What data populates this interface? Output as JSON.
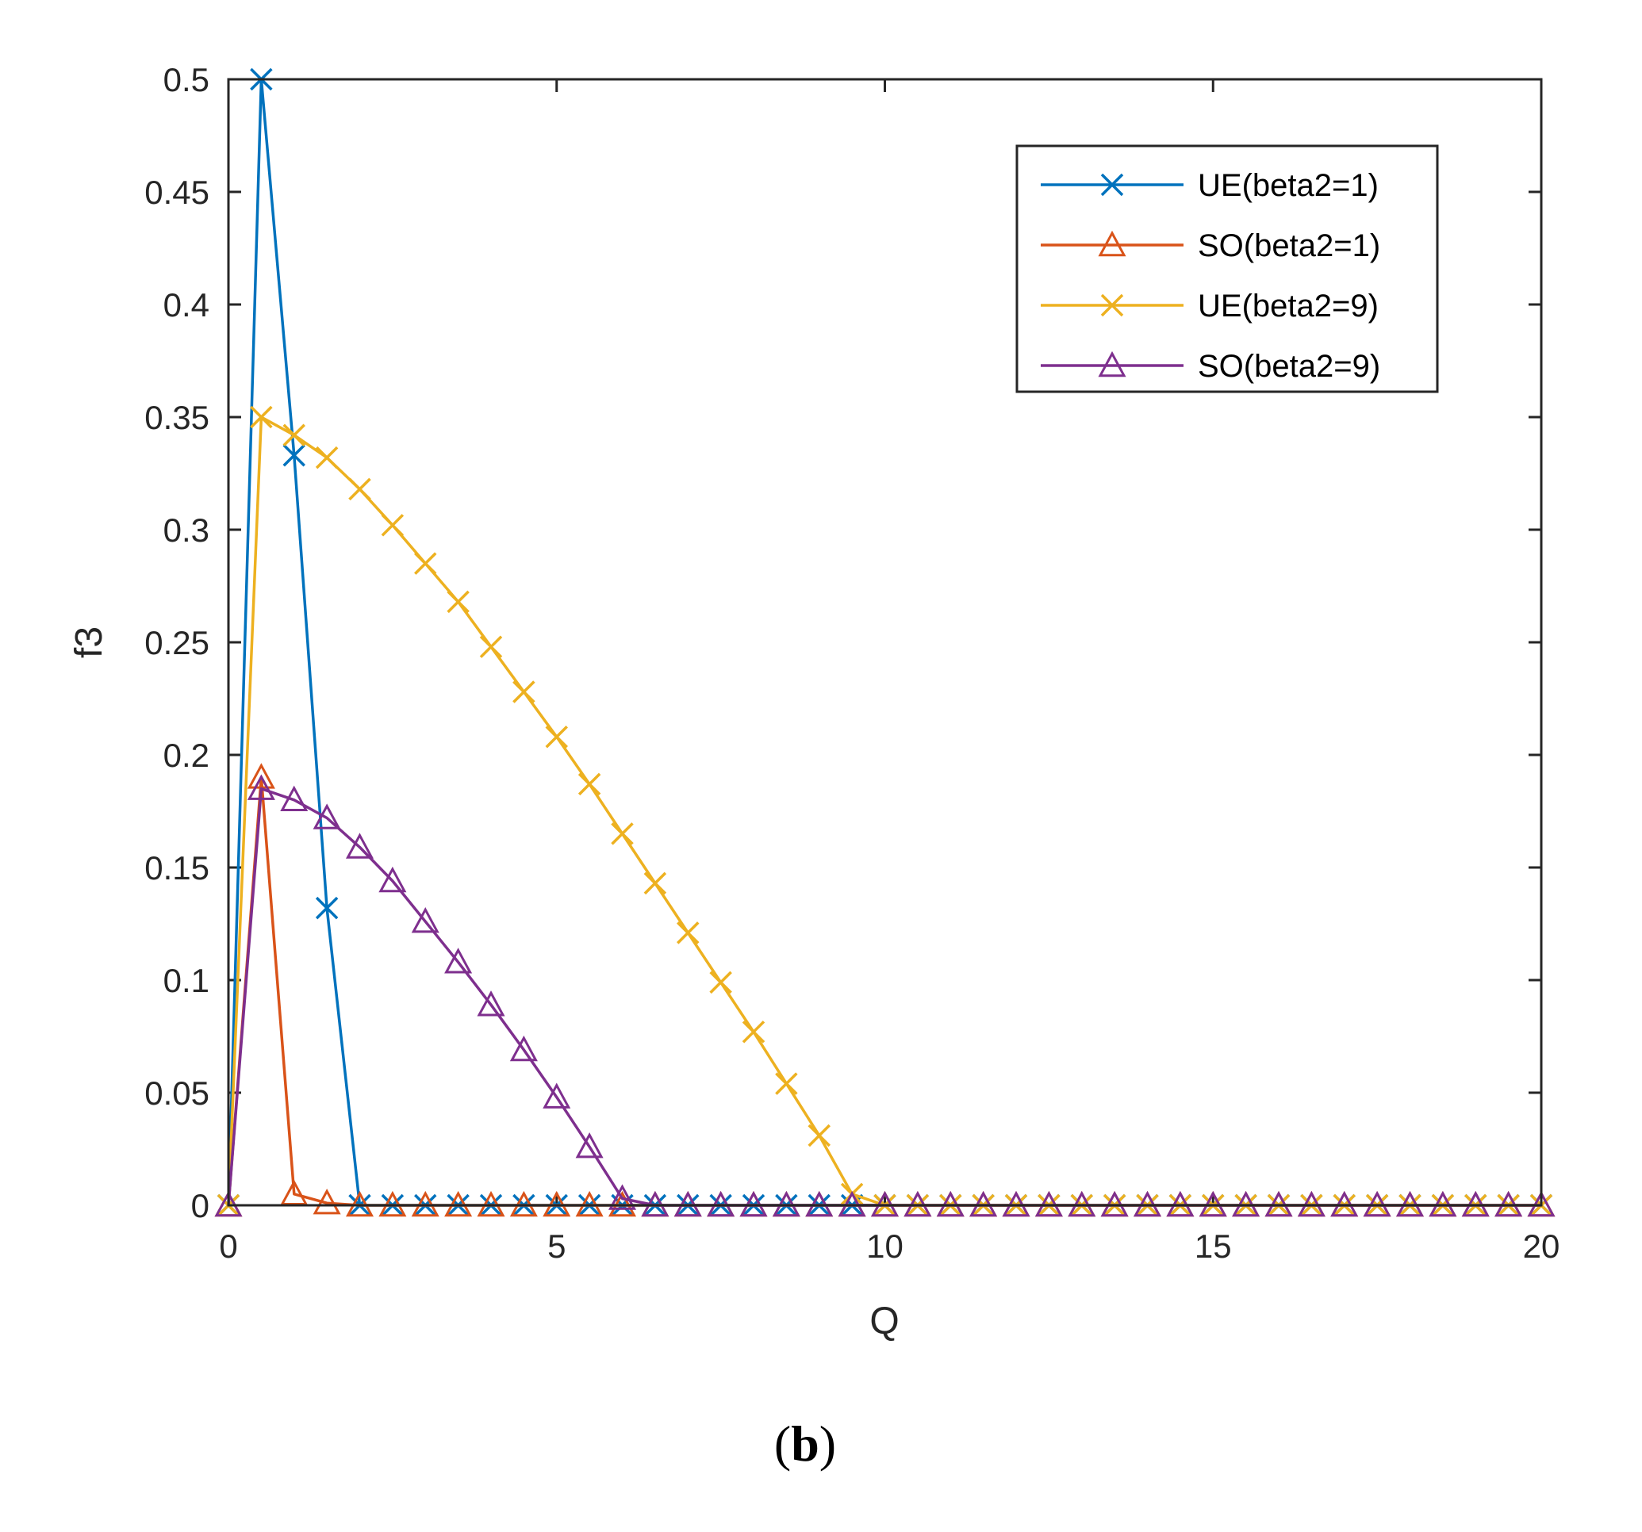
{
  "caption": {
    "open": "(",
    "letter": "b",
    "close": ")"
  },
  "chart_data": {
    "type": "line",
    "title": "",
    "xlabel": "Q",
    "ylabel": "f3",
    "xlim": [
      0,
      20
    ],
    "ylim": [
      0,
      0.5
    ],
    "xticks": [
      0,
      5,
      10,
      15,
      20
    ],
    "xtick_labels": [
      "0",
      "5",
      "10",
      "15",
      "20"
    ],
    "yticks": [
      0,
      0.05,
      0.1,
      0.15,
      0.2,
      0.25,
      0.3,
      0.35,
      0.4,
      0.45,
      0.5
    ],
    "ytick_labels": [
      "0",
      "0.05",
      "0.1",
      "0.15",
      "0.2",
      "0.25",
      "0.3",
      "0.35",
      "0.4",
      "0.45",
      "0.5"
    ],
    "grid": false,
    "legend_position": "top-right",
    "x": [
      0,
      0.5,
      1,
      1.5,
      2,
      2.5,
      3,
      3.5,
      4,
      4.5,
      5,
      5.5,
      6,
      6.5,
      7,
      7.5,
      8,
      8.5,
      9,
      9.5,
      10,
      10.5,
      11,
      11.5,
      12,
      12.5,
      13,
      13.5,
      14,
      14.5,
      15,
      15.5,
      16,
      16.5,
      17,
      17.5,
      18,
      18.5,
      19,
      19.5,
      20
    ],
    "series": [
      {
        "name": "UE(beta2=1)",
        "color": "#0072BD",
        "marker": "x",
        "values": [
          0,
          0.5,
          0.333,
          0.132,
          0,
          0,
          0,
          0,
          0,
          0,
          0,
          0,
          0,
          0,
          0,
          0,
          0,
          0,
          0,
          0,
          0,
          0,
          0,
          0,
          0,
          0,
          0,
          0,
          0,
          0,
          0,
          0,
          0,
          0,
          0,
          0,
          0,
          0,
          0,
          0,
          0
        ]
      },
      {
        "name": "SO(beta2=1)",
        "color": "#D95319",
        "marker": "triangle",
        "values": [
          0,
          0.19,
          0.005,
          0.001,
          0,
          0,
          0,
          0,
          0,
          0,
          0,
          0,
          0,
          0,
          0,
          0,
          0,
          0,
          0,
          0,
          0,
          0,
          0,
          0,
          0,
          0,
          0,
          0,
          0,
          0,
          0,
          0,
          0,
          0,
          0,
          0,
          0,
          0,
          0,
          0,
          0
        ]
      },
      {
        "name": "UE(beta2=9)",
        "color": "#EDB120",
        "marker": "x",
        "values": [
          0,
          0.35,
          0.342,
          0.332,
          0.318,
          0.302,
          0.285,
          0.268,
          0.248,
          0.228,
          0.208,
          0.187,
          0.165,
          0.143,
          0.121,
          0.099,
          0.077,
          0.054,
          0.031,
          0.005,
          0,
          0,
          0,
          0,
          0,
          0,
          0,
          0,
          0,
          0,
          0,
          0,
          0,
          0,
          0,
          0,
          0,
          0,
          0,
          0,
          0
        ]
      },
      {
        "name": "SO(beta2=9)",
        "color": "#7E2F8E",
        "marker": "triangle",
        "values": [
          0,
          0.185,
          0.18,
          0.172,
          0.159,
          0.144,
          0.126,
          0.108,
          0.089,
          0.069,
          0.048,
          0.026,
          0.003,
          0,
          0,
          0,
          0,
          0,
          0,
          0,
          0,
          0,
          0,
          0,
          0,
          0,
          0,
          0,
          0,
          0,
          0,
          0,
          0,
          0,
          0,
          0,
          0,
          0,
          0,
          0,
          0
        ]
      }
    ]
  }
}
